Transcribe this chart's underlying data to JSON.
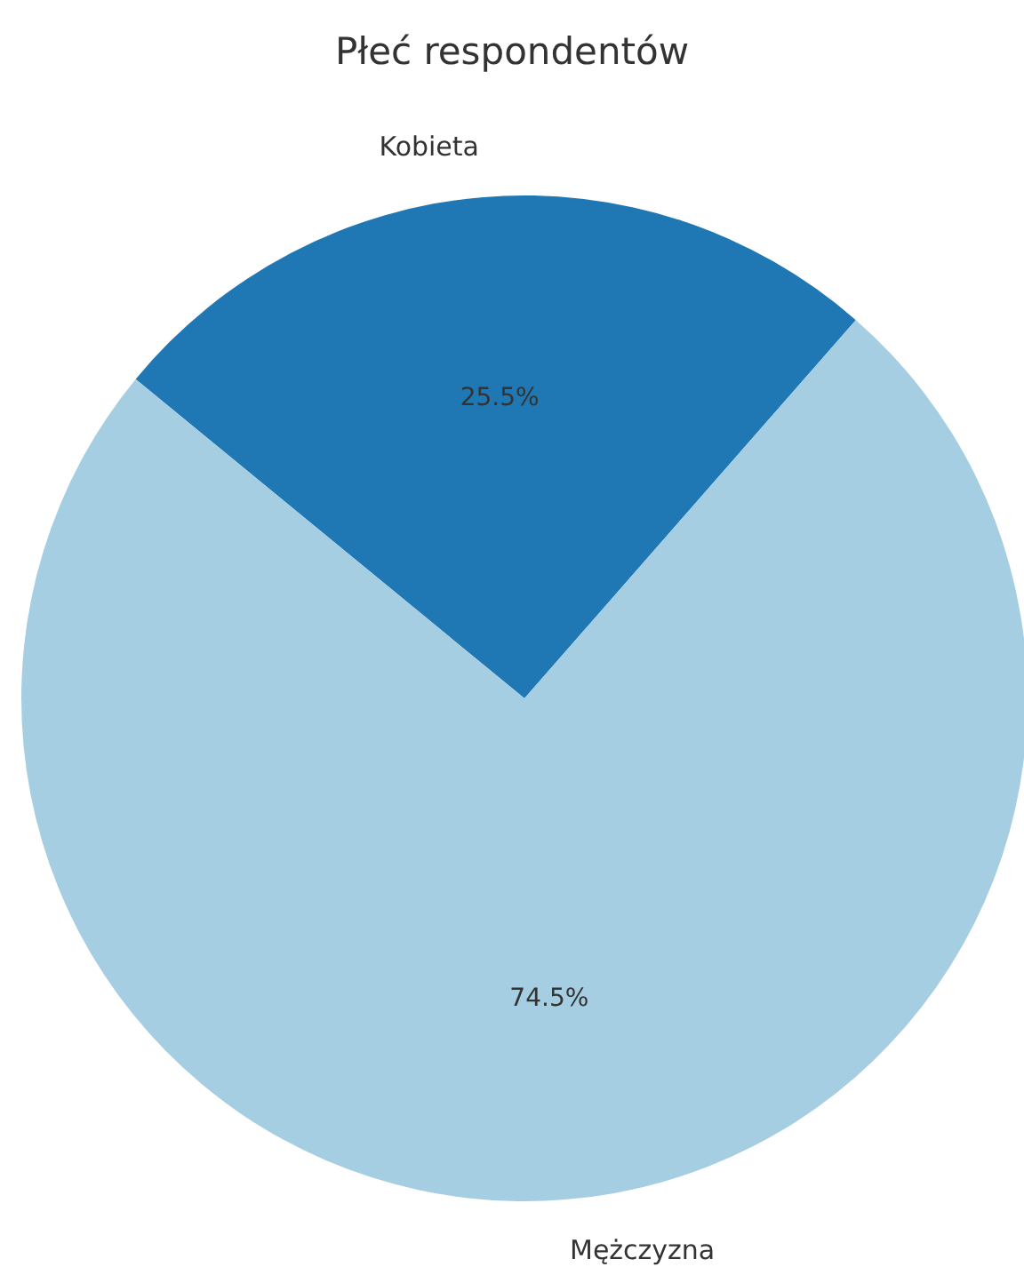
{
  "chart_data": {
    "type": "pie",
    "title": "Płeć respondentów",
    "categories": [
      "Kobieta",
      "Mężczyzna"
    ],
    "values": [
      25.5,
      74.5
    ],
    "colors": [
      "#1f78b4",
      "#a6cee3"
    ],
    "value_labels": [
      "25.5%",
      "74.5%"
    ]
  }
}
